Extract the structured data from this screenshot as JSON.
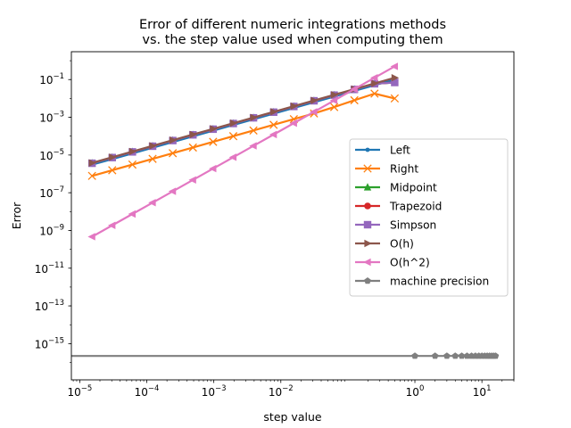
{
  "chart_data": {
    "type": "line",
    "title": "Error of different numeric integrations methods\nvs. the step value used when computing them",
    "xlabel": "step value",
    "ylabel": "Error",
    "xscale": "log",
    "yscale": "log",
    "xlim": [
      7.5e-06,
      30
    ],
    "ylim": [
      1.2e-17,
      3
    ],
    "xticks": [
      {
        "value": 1e-05,
        "base": "10",
        "exp": "−5"
      },
      {
        "value": 0.0001,
        "base": "10",
        "exp": "−4"
      },
      {
        "value": 0.001,
        "base": "10",
        "exp": "−3"
      },
      {
        "value": 0.01,
        "base": "10",
        "exp": "−2"
      },
      {
        "value": 1,
        "base": "10",
        "exp": "0"
      },
      {
        "value": 10,
        "base": "10",
        "exp": "1"
      }
    ],
    "yticks": [
      {
        "value": 1e-15,
        "base": "10",
        "exp": "−15"
      },
      {
        "value": 1e-13,
        "base": "10",
        "exp": "−13"
      },
      {
        "value": 1e-11,
        "base": "10",
        "exp": "−11"
      },
      {
        "value": 1e-09,
        "base": "10",
        "exp": "−9"
      },
      {
        "value": 1e-07,
        "base": "10",
        "exp": "−7"
      },
      {
        "value": 1e-05,
        "base": "10",
        "exp": "−5"
      },
      {
        "value": 0.001,
        "base": "10",
        "exp": "−3"
      },
      {
        "value": 0.1,
        "base": "10",
        "exp": "−1"
      }
    ],
    "legend_position": "center-right",
    "grid": false,
    "x": [
      0.5,
      0.25,
      0.125,
      0.0625,
      0.03125,
      0.015625,
      0.0078125,
      0.00390625,
      0.001953125,
      0.0009765625,
      0.00048828125,
      0.000244140625,
      0.0001220703125,
      6.103515625e-05,
      3.0517578125e-05,
      1.52587890625e-05
    ],
    "series": [
      {
        "name": "Left",
        "color": "#1f77b4",
        "marker": "point",
        "values": [
          0.1,
          0.05,
          0.025,
          0.0125,
          0.00625,
          0.003125,
          0.0015625,
          0.00078125,
          0.000390625,
          0.0001953125,
          9.765625e-05,
          4.8828125e-05,
          2.44140625e-05,
          1.220703125e-05,
          6.103515625e-06,
          3.0517578125e-06
        ]
      },
      {
        "name": "Right",
        "color": "#ff7f0e",
        "marker": "x",
        "values": [
          0.01,
          0.018,
          0.008,
          0.0035,
          0.0016,
          0.0008,
          0.0004,
          0.0002,
          0.0001,
          5e-05,
          2.5e-05,
          1.25e-05,
          6.25e-06,
          3.125e-06,
          1.5625e-06,
          7.8125e-07
        ]
      },
      {
        "name": "Midpoint",
        "color": "#2ca02c",
        "marker": "triangle-up",
        "values": [
          0.07,
          0.06,
          0.03,
          0.015,
          0.0075,
          0.00375,
          0.001875,
          0.0009375,
          0.00046875,
          0.000234375,
          0.0001171875,
          5.859375e-05,
          2.9296875e-05,
          1.46484375e-05,
          7.32421875e-06,
          3.662109375e-06
        ]
      },
      {
        "name": "Trapezoid",
        "color": "#d62728",
        "marker": "circle",
        "values": [
          0.07,
          0.06,
          0.03,
          0.015,
          0.0075,
          0.00375,
          0.001875,
          0.0009375,
          0.00046875,
          0.000234375,
          0.0001171875,
          5.859375e-05,
          2.9296875e-05,
          1.46484375e-05,
          7.32421875e-06,
          3.662109375e-06
        ]
      },
      {
        "name": "Simpson",
        "color": "#9467bd",
        "marker": "square",
        "values": [
          0.07,
          0.06,
          0.03,
          0.015,
          0.0075,
          0.00375,
          0.001875,
          0.0009375,
          0.00046875,
          0.000234375,
          0.0001171875,
          5.859375e-05,
          2.9296875e-05,
          1.46484375e-05,
          7.32421875e-06,
          3.662109375e-06
        ]
      },
      {
        "name": "O(h)",
        "color": "#8c564b",
        "marker": "triangle-right",
        "values": [
          0.125,
          0.0625,
          0.03125,
          0.015625,
          0.0078125,
          0.00390625,
          0.001953125,
          0.0009765625,
          0.00048828125,
          0.000244140625,
          0.0001220703125,
          6.103515625e-05,
          3.0517578125e-05,
          1.52587890625e-05,
          7.62939453125e-06,
          3.814697265625e-06
        ]
      },
      {
        "name": "O(h^2)",
        "color": "#e377c2",
        "marker": "triangle-left",
        "values": [
          0.5,
          0.125,
          0.03125,
          0.0078125,
          0.001953125,
          0.00048828125,
          0.0001220703125,
          3.0517578125e-05,
          7.62939453125e-06,
          1.9073486328125e-06,
          4.76837158203125e-07,
          1.1920928955078125e-07,
          2.98023223876953e-08,
          7.450580596923828e-09,
          1.862645149230957e-09,
          4.656612873077393e-10
        ]
      },
      {
        "name": "machine precision",
        "color": "#7f7f7f",
        "marker": "pentagon",
        "line_to_left_edge": true,
        "x": [
          1,
          2,
          3,
          4,
          5,
          6,
          7,
          8,
          9,
          10,
          11,
          12,
          13,
          14,
          15,
          16
        ],
        "values": [
          2.220446049250313e-16,
          2.220446049250313e-16,
          2.220446049250313e-16,
          2.220446049250313e-16,
          2.220446049250313e-16,
          2.220446049250313e-16,
          2.220446049250313e-16,
          2.220446049250313e-16,
          2.220446049250313e-16,
          2.220446049250313e-16,
          2.220446049250313e-16,
          2.220446049250313e-16,
          2.220446049250313e-16,
          2.220446049250313e-16,
          2.220446049250313e-16,
          2.220446049250313e-16
        ]
      }
    ]
  }
}
